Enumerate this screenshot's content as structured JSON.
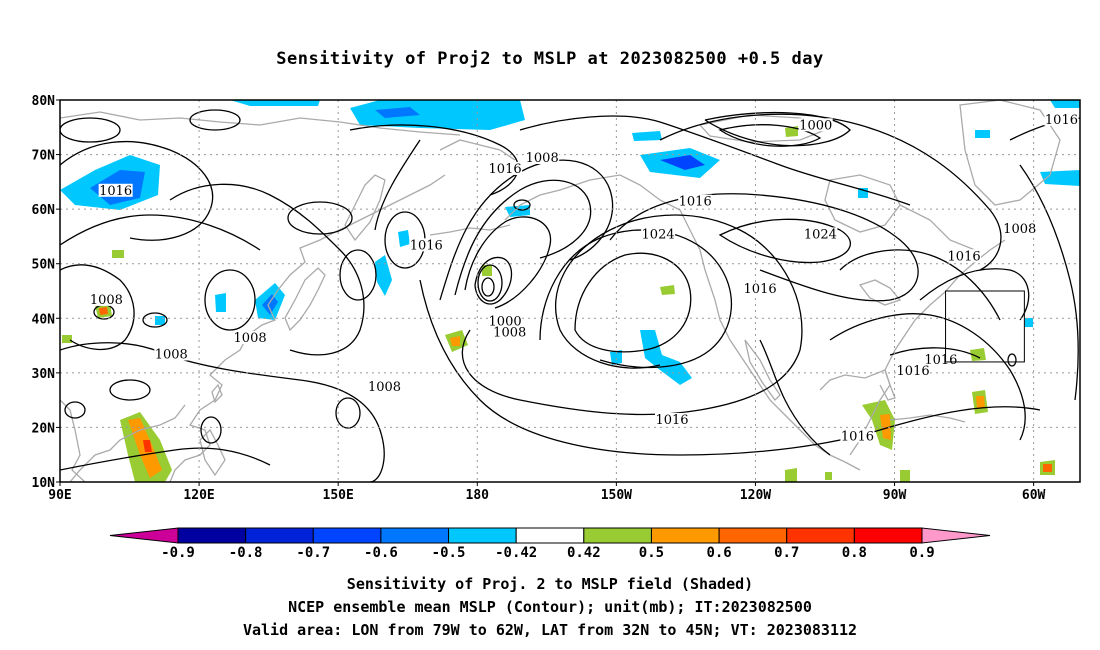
{
  "title": "Sensitivity of Proj2 to MSLP at 2023082500 +0.5 day",
  "axes": {
    "lat_labels": [
      "80N",
      "70N",
      "60N",
      "50N",
      "40N",
      "30N",
      "20N",
      "10N"
    ],
    "lon_labels": [
      "90E",
      "120E",
      "150E",
      "180",
      "150W",
      "120W",
      "90W",
      "60W"
    ],
    "lat_values": [
      80,
      70,
      60,
      50,
      40,
      30,
      20,
      10
    ],
    "lon_values": [
      90,
      120,
      150,
      180,
      210,
      240,
      270,
      300
    ],
    "lon_range": [
      90,
      310
    ],
    "lat_range": [
      10,
      80
    ],
    "grid": "dotted"
  },
  "contour_labels": [
    {
      "text": "1016",
      "lon": 102,
      "lat": 63
    },
    {
      "text": "1016",
      "lon": 169,
      "lat": 53
    },
    {
      "text": "1016",
      "lon": 186,
      "lat": 67
    },
    {
      "text": "1008",
      "lon": 194,
      "lat": 69
    },
    {
      "text": "1000",
      "lon": 253,
      "lat": 75
    },
    {
      "text": "1016",
      "lon": 306,
      "lat": 76
    },
    {
      "text": "1016",
      "lon": 227,
      "lat": 61
    },
    {
      "text": "1024",
      "lon": 219,
      "lat": 55
    },
    {
      "text": "1024",
      "lon": 254,
      "lat": 55
    },
    {
      "text": "1008",
      "lon": 297,
      "lat": 56
    },
    {
      "text": "1016",
      "lon": 285,
      "lat": 51
    },
    {
      "text": "1016",
      "lon": 241,
      "lat": 45
    },
    {
      "text": "1008",
      "lon": 100,
      "lat": 43
    },
    {
      "text": "1008",
      "lon": 131,
      "lat": 36
    },
    {
      "text": "1008",
      "lon": 114,
      "lat": 33
    },
    {
      "text": "1000",
      "lon": 186,
      "lat": 39
    },
    {
      "text": "1008",
      "lon": 187,
      "lat": 37
    },
    {
      "text": "1008",
      "lon": 160,
      "lat": 27
    },
    {
      "text": "1016",
      "lon": 222,
      "lat": 21
    },
    {
      "text": "1016",
      "lon": 262,
      "lat": 18
    },
    {
      "text": "1016",
      "lon": 280,
      "lat": 32
    },
    {
      "text": "1016",
      "lon": 274,
      "lat": 30
    }
  ],
  "valid_area": {
    "lon": [
      281,
      298
    ],
    "lat": [
      32,
      45
    ]
  },
  "colorbar": {
    "labels": [
      "-0.9",
      "-0.8",
      "-0.7",
      "-0.6",
      "-0.5",
      "-0.42",
      "0.42",
      "0.5",
      "0.6",
      "0.7",
      "0.8",
      "0.9"
    ],
    "colors": [
      "#0000a0",
      "#0022d8",
      "#0044ff",
      "#0077ff",
      "#00c8ff",
      "#ffffff",
      "#99cc33",
      "#ff9900",
      "#ff6600",
      "#ff3300",
      "#ff0000"
    ],
    "low_extend_color": "#cc0099",
    "high_extend_color": "#ff99cc"
  },
  "captions": {
    "line1": "Sensitivity of Proj. 2 to MSLP field (Shaded)",
    "line2": "NCEP ensemble mean MSLP (Contour); unit(mb); IT:2023082500",
    "line3": "Valid area: LON from 79W to 62W, LAT from 32N to 45N; VT: 2023083112"
  }
}
